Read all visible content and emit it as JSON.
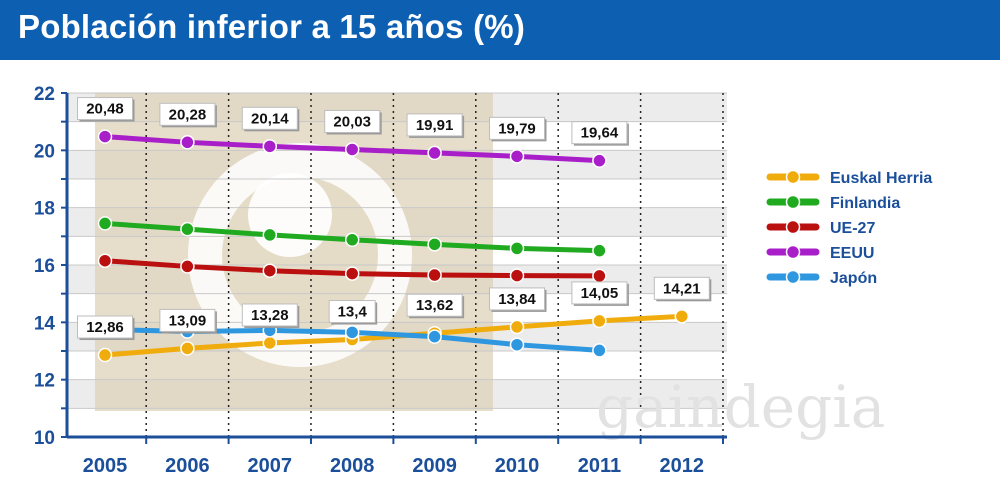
{
  "title": "Población inferior a 15 años (%)",
  "watermark": "gaindegia",
  "colors": {
    "title_bar": "#0d5fb1",
    "axis": "#1b4f9a",
    "Euskal Herria": "#f0ab0c",
    "Finlandia": "#1faa1f",
    "UE-27": "#bb1010",
    "EEUU": "#a81fc9",
    "Japón": "#2e97df"
  },
  "chart_data": {
    "type": "line",
    "title": "Población inferior a 15 años (%)",
    "xlabel": "",
    "ylabel": "",
    "categories": [
      "2005",
      "2006",
      "2007",
      "2008",
      "2009",
      "2010",
      "2011",
      "2012"
    ],
    "ylim": [
      10,
      22
    ],
    "yticks": [
      "10",
      "12",
      "14",
      "16",
      "18",
      "20",
      "22"
    ],
    "grid": true,
    "legend_position": "right",
    "series": [
      {
        "name": "Euskal Herria",
        "values": [
          12.86,
          13.09,
          13.28,
          13.4,
          13.62,
          13.84,
          14.05,
          14.21
        ],
        "labels": [
          "12,86",
          "13,09",
          "13,28",
          "13,4",
          "13,62",
          "13,84",
          "14,05",
          "14,21"
        ]
      },
      {
        "name": "Finlandia",
        "values": [
          17.45,
          17.25,
          17.05,
          16.88,
          16.72,
          16.58,
          16.5,
          null
        ]
      },
      {
        "name": "UE-27",
        "values": [
          16.15,
          15.95,
          15.8,
          15.7,
          15.65,
          15.63,
          15.62,
          null
        ]
      },
      {
        "name": "EEUU",
        "values": [
          20.48,
          20.28,
          20.14,
          20.03,
          19.91,
          19.79,
          19.64,
          null
        ],
        "labels": [
          "20,48",
          "20,28",
          "20,14",
          "20,03",
          "19,91",
          "19,79",
          "19,64",
          null
        ]
      },
      {
        "name": "Japón",
        "values": [
          13.75,
          13.68,
          13.72,
          13.65,
          13.5,
          13.22,
          13.02,
          null
        ]
      }
    ]
  }
}
